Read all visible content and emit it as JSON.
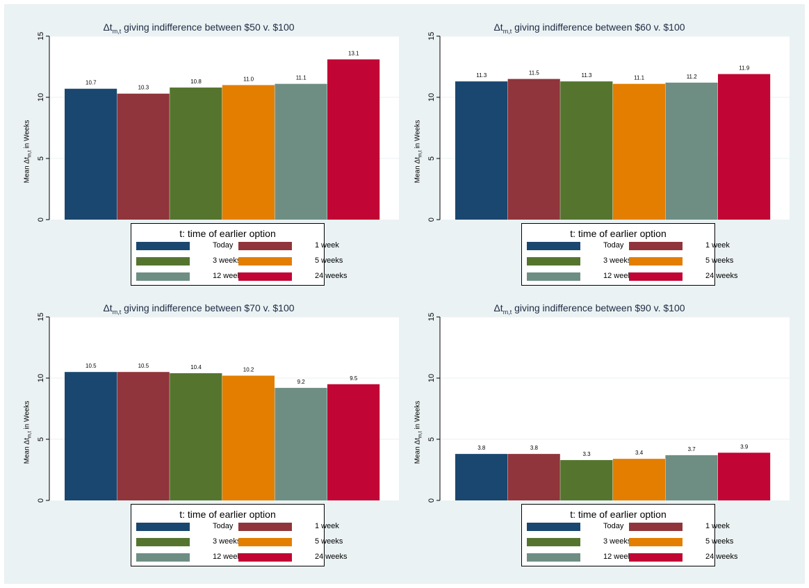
{
  "legend": {
    "title": "t: time of earlier option"
  },
  "colors": {
    "background": "#eaf2f3",
    "plot_area": "#ffffff",
    "gridline": "#eaf2f3",
    "series": [
      "#1a476f",
      "#90353b",
      "#55752f",
      "#e37e00",
      "#6e8e84",
      "#c10534"
    ]
  },
  "chart_data": [
    {
      "type": "bar",
      "title_prefix": "Δt",
      "title_subscript": "m,t",
      "title_suffix": " giving indifference between $50 v. $100",
      "ylabel_prefix": "Mean Δt",
      "ylabel_subscript": "m,t",
      "ylabel_suffix": " in Weeks",
      "categories": [
        "Today",
        "1 week",
        "3 weeks",
        "5 weeks",
        "12 weeks",
        "24 weeks"
      ],
      "values": [
        10.7,
        10.3,
        10.8,
        11.0,
        11.1,
        13.1
      ],
      "value_labels": [
        "10.7",
        "10.3",
        "10.8",
        "11.0",
        "11.1",
        "13.1"
      ],
      "ylim": [
        0,
        15
      ],
      "yticks": [
        0,
        5,
        10,
        15
      ],
      "grid": true,
      "legend_position": "bottom"
    },
    {
      "type": "bar",
      "title_prefix": "Δt",
      "title_subscript": "m,t",
      "title_suffix": " giving indifference between $60 v. $100",
      "ylabel_prefix": "Mean Δt",
      "ylabel_subscript": "m,t",
      "ylabel_suffix": " in Weeks",
      "categories": [
        "Today",
        "1 week",
        "3 weeks",
        "5 weeks",
        "12 weeks",
        "24 weeks"
      ],
      "values": [
        11.3,
        11.5,
        11.3,
        11.1,
        11.2,
        11.9
      ],
      "value_labels": [
        "11.3",
        "11.5",
        "11.3",
        "11.1",
        "11.2",
        "11.9"
      ],
      "ylim": [
        0,
        15
      ],
      "yticks": [
        0,
        5,
        10,
        15
      ],
      "grid": true,
      "legend_position": "bottom"
    },
    {
      "type": "bar",
      "title_prefix": "Δt",
      "title_subscript": "m,t",
      "title_suffix": " giving indifference between $70 v. $100",
      "ylabel_prefix": "Mean Δt",
      "ylabel_subscript": "m,t",
      "ylabel_suffix": " in Weeks",
      "categories": [
        "Today",
        "1 week",
        "3 weeks",
        "5 weeks",
        "12 weeks",
        "24 weeks"
      ],
      "values": [
        10.5,
        10.5,
        10.4,
        10.2,
        9.2,
        9.5
      ],
      "value_labels": [
        "10.5",
        "10.5",
        "10.4",
        "10.2",
        "9.2",
        "9.5"
      ],
      "ylim": [
        0,
        15
      ],
      "yticks": [
        0,
        5,
        10,
        15
      ],
      "grid": true,
      "legend_position": "bottom"
    },
    {
      "type": "bar",
      "title_prefix": "Δt",
      "title_subscript": "m,t",
      "title_suffix": " giving indifference between $90 v. $100",
      "ylabel_prefix": "Mean Δt",
      "ylabel_subscript": "m,t",
      "ylabel_suffix": " in Weeks",
      "categories": [
        "Today",
        "1 week",
        "3 weeks",
        "5 weeks",
        "12 weeks",
        "24 weeks"
      ],
      "values": [
        3.8,
        3.8,
        3.3,
        3.4,
        3.7,
        3.9
      ],
      "value_labels": [
        "3.8",
        "3.8",
        "3.3",
        "3.4",
        "3.7",
        "3.9"
      ],
      "ylim": [
        0,
        15
      ],
      "yticks": [
        0,
        5,
        10,
        15
      ],
      "grid": true,
      "legend_position": "bottom"
    }
  ]
}
